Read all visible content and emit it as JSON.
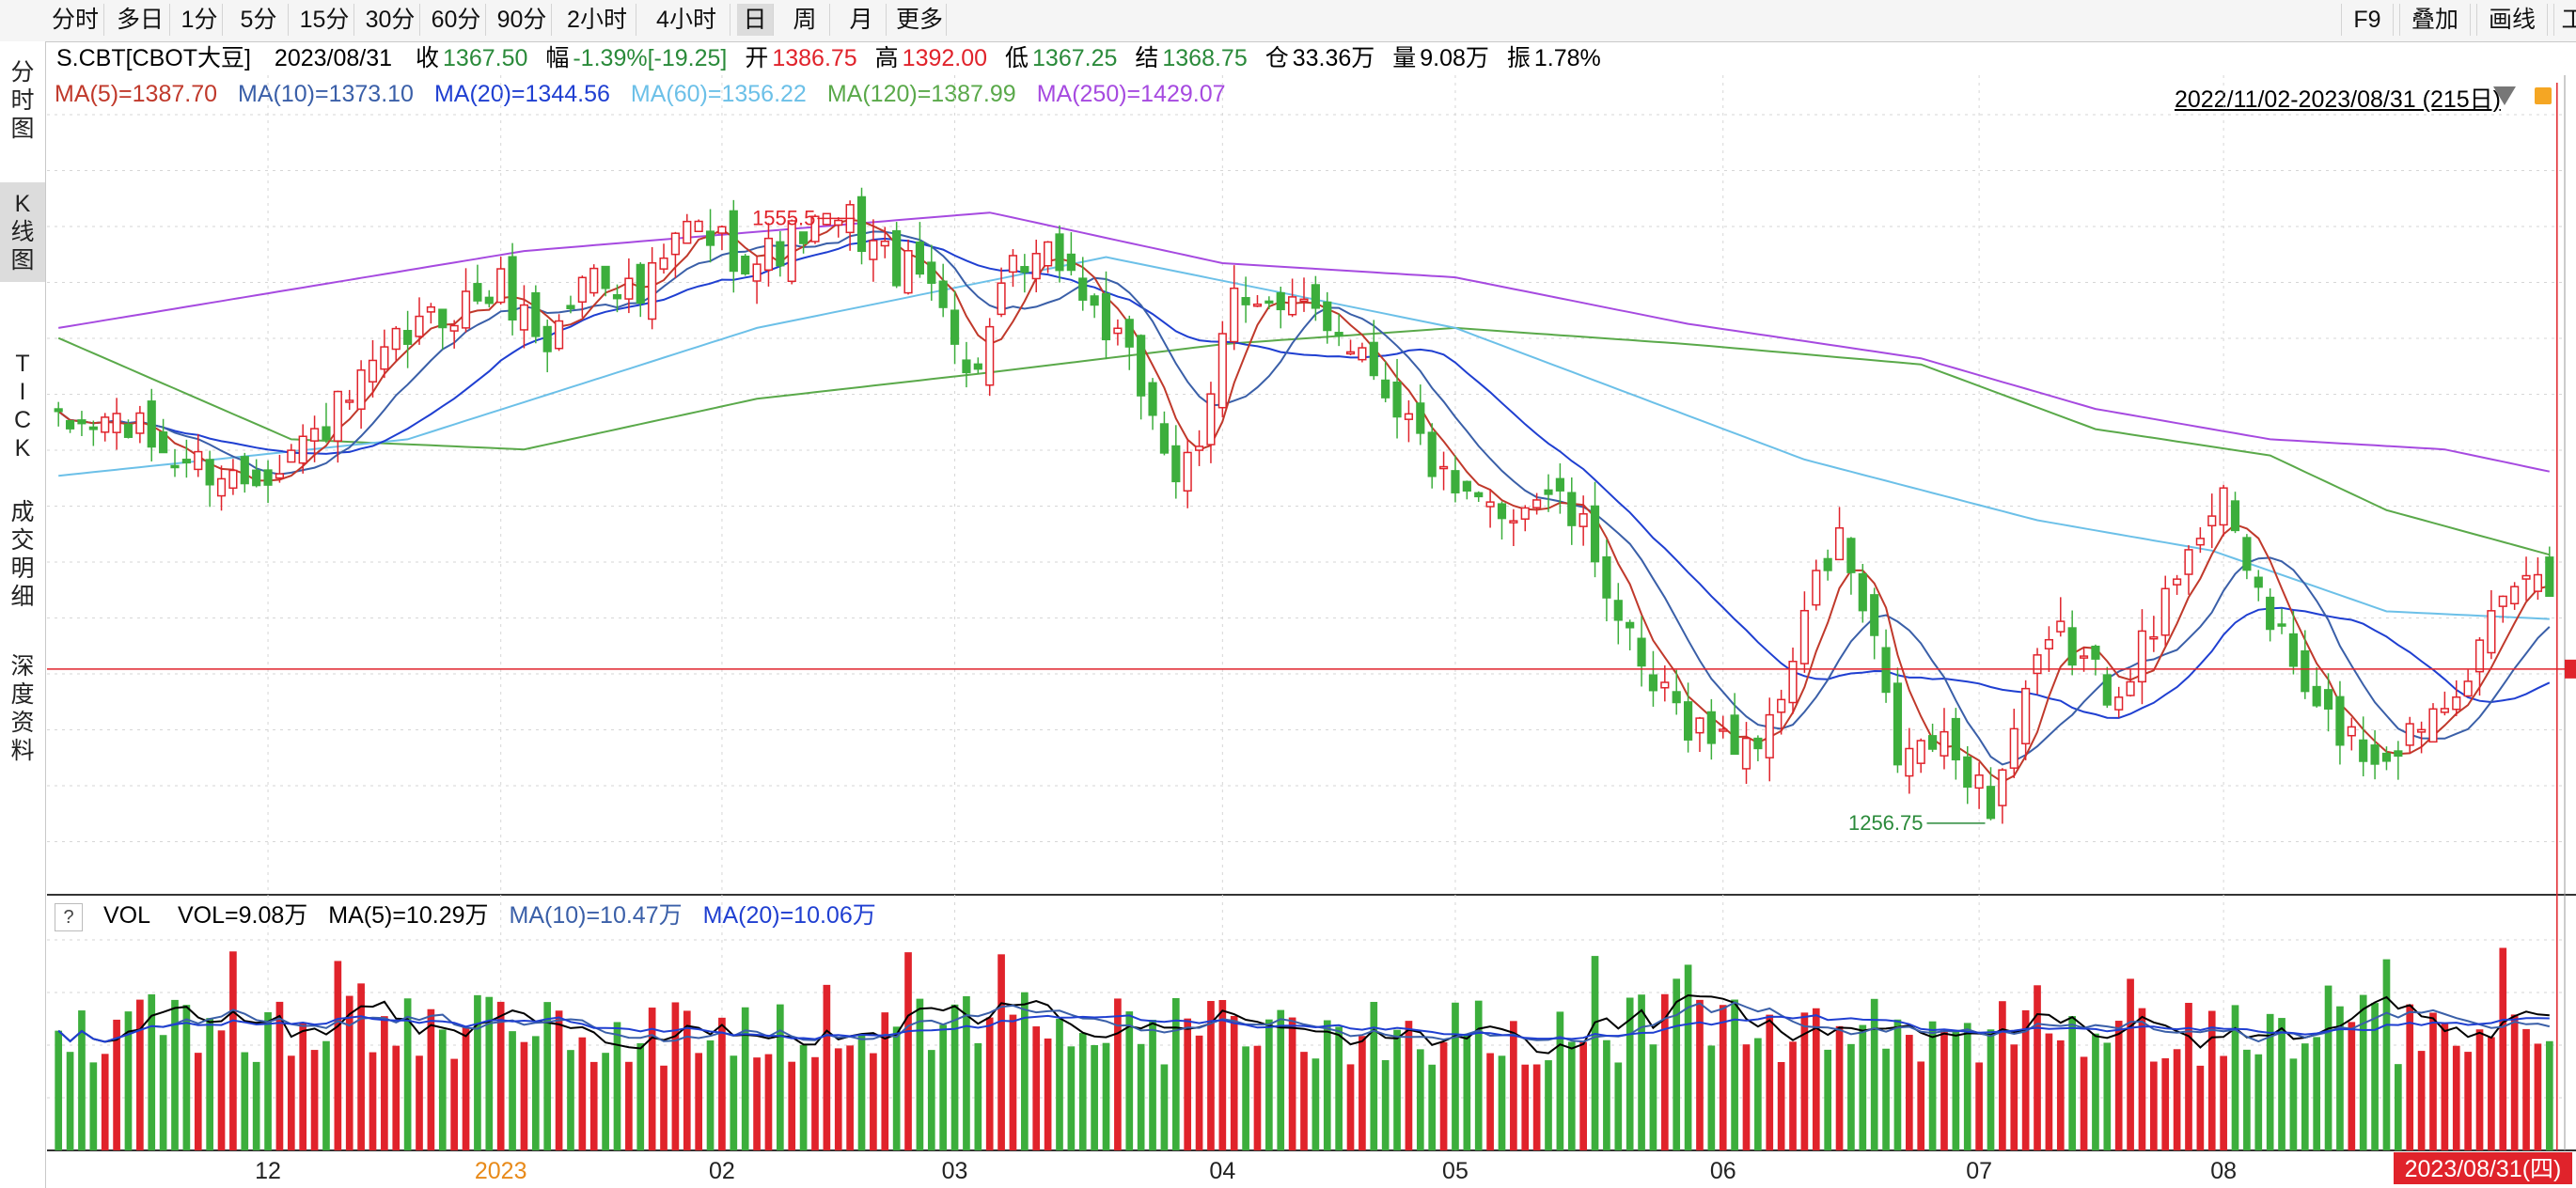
{
  "toolbar": {
    "periods": [
      "分时",
      "多日",
      "1分",
      "5分",
      "15分",
      "30分",
      "60分",
      "90分",
      "2小时",
      "4小时",
      "日",
      "周",
      "月",
      "更多"
    ],
    "active_period": "日",
    "right_buttons": [
      "F9",
      "叠加",
      "画线",
      "工"
    ]
  },
  "sidebar": {
    "tabs": [
      "分时图",
      "K线图",
      "TICK",
      "成交明细",
      "深度资料"
    ],
    "active_tab": "K线图"
  },
  "quote": {
    "symbol": "S.CBT[CBOT大豆]",
    "date": "2023/08/31",
    "close_label": "收",
    "close": "1367.50",
    "change_label": "幅",
    "change": "-1.39%[-19.25]",
    "open_label": "开",
    "open": "1386.75",
    "high_label": "高",
    "high": "1392.00",
    "low_label": "低",
    "low": "1367.25",
    "settle_label": "结",
    "settle": "1368.75",
    "oi_label": "仓",
    "oi": "33.36万",
    "volume_label": "量",
    "volume": "9.08万",
    "amp_label": "振",
    "amp": "1.78%"
  },
  "ma_legend": [
    {
      "text": "MA(5)=1387.70",
      "color": "#c0392b"
    },
    {
      "text": "MA(10)=1373.10",
      "color": "#3a5fa8"
    },
    {
      "text": "MA(20)=1344.56",
      "color": "#1f3fd1"
    },
    {
      "text": "MA(60)=1356.22",
      "color": "#6cc0e8"
    },
    {
      "text": "MA(120)=1387.99",
      "color": "#5aa94a"
    },
    {
      "text": "MA(250)=1429.07",
      "color": "#a64ae0"
    }
  ],
  "date_range": "2022/11/02-2023/08/31 (215日)",
  "annotations": {
    "high": "1555.5",
    "low": "1256.75"
  },
  "volume_legend": {
    "help": "?",
    "label": "VOL",
    "items": [
      {
        "text": "VOL=9.08万",
        "color": "#000000"
      },
      {
        "text": "MA(5)=10.29万",
        "color": "#000000"
      },
      {
        "text": "MA(10)=10.47万",
        "color": "#3a5fa8"
      },
      {
        "text": "MA(20)=10.06万",
        "color": "#1f3fd1"
      }
    ]
  },
  "x_axis": {
    "labels": [
      {
        "text": "12",
        "index": 18
      },
      {
        "text": "2023",
        "index": 38
      },
      {
        "text": "02",
        "index": 57
      },
      {
        "text": "03",
        "index": 77
      },
      {
        "text": "04",
        "index": 100
      },
      {
        "text": "05",
        "index": 120
      },
      {
        "text": "06",
        "index": 143
      },
      {
        "text": "07",
        "index": 165
      },
      {
        "text": "08",
        "index": 186
      }
    ],
    "current_date": "2023/08/31(四)",
    "year_color": "#e88a1a"
  },
  "colors": {
    "up": "#e0232b",
    "down": "#3cae3c",
    "accent": "#e0232b",
    "grid": "#cccccc"
  },
  "chart_data": [
    {
      "type": "candlestick",
      "series_name": "S.CBT",
      "x": "trading days 2022/11/02 - 2023/08/31",
      "ylim": [
        1220,
        1610
      ],
      "close_path": [
        [
          0,
          1449
        ],
        [
          5,
          1455
        ],
        [
          10,
          1436
        ],
        [
          16,
          1425
        ],
        [
          22,
          1447
        ],
        [
          26,
          1470
        ],
        [
          30,
          1496
        ],
        [
          34,
          1510
        ],
        [
          38,
          1520
        ],
        [
          42,
          1492
        ],
        [
          46,
          1532
        ],
        [
          50,
          1514
        ],
        [
          54,
          1550
        ],
        [
          56,
          1545
        ],
        [
          60,
          1533
        ],
        [
          64,
          1547
        ],
        [
          68,
          1552
        ],
        [
          72,
          1530
        ],
        [
          76,
          1520
        ],
        [
          78,
          1473
        ],
        [
          82,
          1525
        ],
        [
          86,
          1535
        ],
        [
          90,
          1500
        ],
        [
          94,
          1460
        ],
        [
          96,
          1427
        ],
        [
          98,
          1433
        ],
        [
          101,
          1525
        ],
        [
          105,
          1505
        ],
        [
          108,
          1510
        ],
        [
          112,
          1490
        ],
        [
          116,
          1454
        ],
        [
          120,
          1412
        ],
        [
          124,
          1410
        ],
        [
          128,
          1420
        ],
        [
          132,
          1390
        ],
        [
          136,
          1325
        ],
        [
          140,
          1307
        ],
        [
          143,
          1295
        ],
        [
          147,
          1300
        ],
        [
          150,
          1360
        ],
        [
          153,
          1396
        ],
        [
          156,
          1340
        ],
        [
          158,
          1287
        ],
        [
          161,
          1295
        ],
        [
          164,
          1283
        ],
        [
          166,
          1265
        ],
        [
          169,
          1320
        ],
        [
          172,
          1347
        ],
        [
          176,
          1322
        ],
        [
          180,
          1348
        ],
        [
          183,
          1398
        ],
        [
          186,
          1410
        ],
        [
          190,
          1357
        ],
        [
          194,
          1308
        ],
        [
          196,
          1302
        ],
        [
          199,
          1288
        ],
        [
          202,
          1300
        ],
        [
          205,
          1322
        ],
        [
          208,
          1340
        ],
        [
          212,
          1380
        ],
        [
          214,
          1367.5
        ]
      ],
      "ma": [
        {
          "name": "MA(5)",
          "color": "#c0392b",
          "final": 1387.7
        },
        {
          "name": "MA(10)",
          "color": "#3a5fa8",
          "final": 1373.1
        },
        {
          "name": "MA(20)",
          "color": "#1f3fd1",
          "final": 1344.56
        },
        {
          "name": "MA(60)",
          "color": "#6cc0e8",
          "final": 1356.22
        },
        {
          "name": "MA(120)",
          "color": "#5aa94a",
          "final": 1387.99
        },
        {
          "name": "MA(250)",
          "color": "#a64ae0",
          "final": 1429.07
        }
      ],
      "ma60_path": [
        [
          0,
          1427
        ],
        [
          30,
          1445
        ],
        [
          60,
          1500
        ],
        [
          90,
          1535
        ],
        [
          120,
          1500
        ],
        [
          150,
          1435
        ],
        [
          170,
          1405
        ],
        [
          185,
          1390
        ],
        [
          200,
          1360
        ],
        [
          214,
          1356.22
        ]
      ],
      "ma120_path": [
        [
          0,
          1495
        ],
        [
          20,
          1445
        ],
        [
          40,
          1440
        ],
        [
          60,
          1465
        ],
        [
          80,
          1478
        ],
        [
          100,
          1492
        ],
        [
          120,
          1500
        ],
        [
          140,
          1492
        ],
        [
          160,
          1482
        ],
        [
          175,
          1450
        ],
        [
          190,
          1437
        ],
        [
          200,
          1410
        ],
        [
          214,
          1387.99
        ]
      ],
      "ma250_path": [
        [
          0,
          1500
        ],
        [
          40,
          1538
        ],
        [
          80,
          1557
        ],
        [
          100,
          1532
        ],
        [
          120,
          1525
        ],
        [
          140,
          1502
        ],
        [
          160,
          1485
        ],
        [
          175,
          1460
        ],
        [
          190,
          1445
        ],
        [
          205,
          1440
        ],
        [
          214,
          1429.07
        ]
      ],
      "high": 1555.5,
      "low": 1256.75,
      "last_close": 1367.5
    },
    {
      "type": "bar",
      "series_name": "VOL",
      "unit": "万",
      "ylim": [
        0,
        20
      ],
      "last": 9.08,
      "ma5": 10.29,
      "ma10": 10.47,
      "ma20": 10.06
    }
  ]
}
